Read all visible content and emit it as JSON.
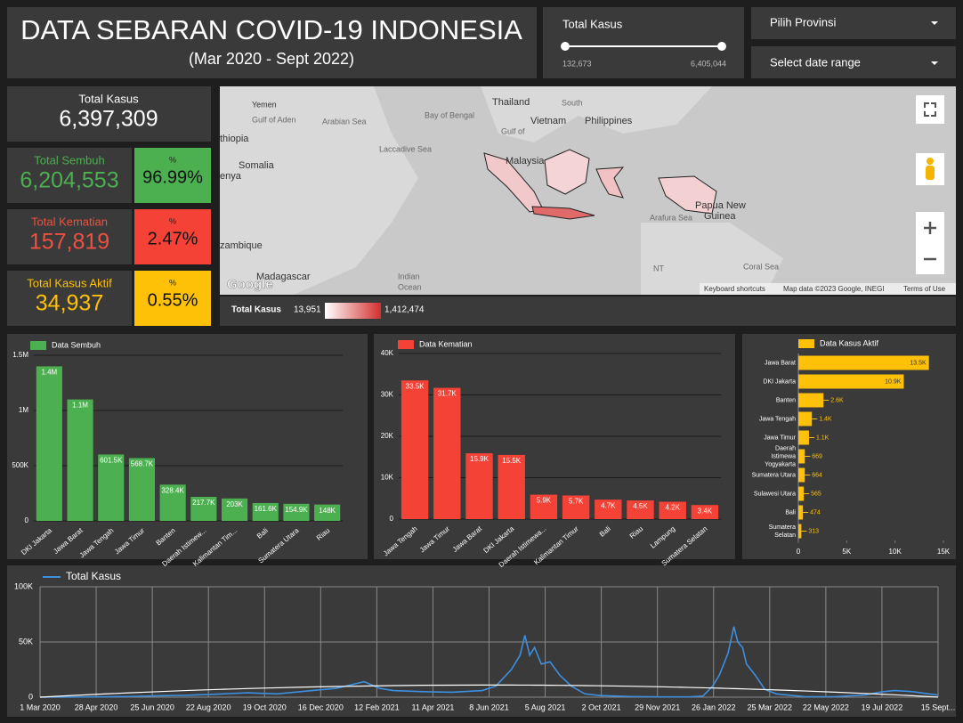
{
  "header": {
    "title": "DATA SEBARAN COVID-19 INDONESIA",
    "subtitle": "(Mar 2020 - Sept 2022)"
  },
  "slider": {
    "label": "Total Kasus",
    "min": "132,673",
    "max": "6,405,044"
  },
  "controls": [
    "Pilih Provinsi",
    "Select date range"
  ],
  "kpis": [
    {
      "label": "Total Kasus",
      "value": "6,397,309"
    },
    {
      "label": "Total Sembuh",
      "value": "6,204,553",
      "pct_label": "%",
      "pct": "96.99%"
    },
    {
      "label": "Total Kematian",
      "value": "157,819",
      "pct_label": "%",
      "pct": "2.47%"
    },
    {
      "label": "Total Kasus Aktif",
      "value": "34,937",
      "pct_label": "%",
      "pct": "0.55%"
    }
  ],
  "map": {
    "places": [
      "Yemen",
      "Gulf of Aden",
      "Arabian Sea",
      "thiopia",
      "Somalia",
      "enya",
      "zambique",
      "Madagascar",
      "Indian",
      "Ocean",
      "Thailand",
      "Vietnam",
      "Philippines",
      "Bay of Bengal",
      "Laccadive Sea",
      "Malaysia",
      "Papua New",
      "Guinea",
      "Coral Sea",
      "South",
      "Gulf of",
      "NT",
      "Arafura Sea",
      "Google"
    ],
    "attribution": [
      "Keyboard shortcuts",
      "Map data ©2023 Google, INEGI",
      "Terms of Use"
    ],
    "legend": {
      "label": "Total Kasus",
      "min": "13,951",
      "max": "1,412,474"
    }
  },
  "chart_data": [
    {
      "type": "bar",
      "categories": [
        "DKI Jakarta",
        "Jawa Barat",
        "Jawa Tengah",
        "Jawa Timur",
        "Banten",
        "Daerah Istimew...",
        "Kalimantan Tim...",
        "Bali",
        "Sumatera Utara",
        "Riau"
      ],
      "series": [
        {
          "name": "Data Sembuh",
          "color": "#4caf50",
          "values": [
            1400000,
            1100000,
            601500,
            568700,
            328400,
            217700,
            203000,
            161600,
            154900,
            148000
          ],
          "value_labels": [
            "1.4M",
            "1.1M",
            "601.5K",
            "568.7K",
            "328.4K",
            "217.7K",
            "203K",
            "161.6K",
            "154.9K",
            "148K"
          ]
        }
      ],
      "ylim": [
        0,
        1500000
      ],
      "yticks": [
        0,
        {
          "value": 500000,
          "label": "500K"
        },
        {
          "value": 1000000,
          "label": "1M"
        },
        {
          "value": 1500000,
          "label": "1.5M"
        }
      ],
      "grid": true
    },
    {
      "type": "bar",
      "categories": [
        "Jawa Tengah",
        "Jawa Timur",
        "Jawa Barat",
        "DKI Jakarta",
        "Daerah Istimewa...",
        "Kalimantan Timur",
        "Bali",
        "Riau",
        "Lampung",
        "Sumatera Selatan"
      ],
      "series": [
        {
          "name": "Data Kematian",
          "color": "#f44336",
          "values": [
            33500,
            31700,
            15900,
            15500,
            5900,
            5700,
            4700,
            4500,
            4200,
            3400
          ],
          "value_labels": [
            "33.5K",
            "31.7K",
            "15.9K",
            "15.5K",
            "5.9K",
            "5.7K",
            "4.7K",
            "4.5K",
            "4.2K",
            "3.4K"
          ]
        }
      ],
      "ylim": [
        0,
        40000
      ],
      "yticks": [
        0,
        {
          "value": 10000,
          "label": "10K"
        },
        {
          "value": 20000,
          "label": "20K"
        },
        {
          "value": 30000,
          "label": "30K"
        },
        {
          "value": 40000,
          "label": "40K"
        }
      ],
      "grid": true
    },
    {
      "type": "hbar",
      "categories": [
        "Jawa Barat",
        "DKI Jakarta",
        "Banten",
        "Jawa Tengah",
        "Jawa Timur",
        "Daerah Istimewa Yogyakarta",
        "Sumatera Utara",
        "Sulawesi Utara",
        "Bali",
        "Sumatera Selatan"
      ],
      "series": [
        {
          "name": "Data Kasus Aktif",
          "color": "#ffc107",
          "values": [
            13500,
            10900,
            2600,
            1400,
            1100,
            669,
            664,
            565,
            474,
            313
          ],
          "value_labels": [
            "13.5K",
            "10.9K",
            "2.6K",
            "1.4K",
            "1.1K",
            "669",
            "664",
            "565",
            "474",
            "313"
          ]
        }
      ],
      "xlim": [
        0,
        15000
      ],
      "xticks": [
        0,
        {
          "value": 5000,
          "label": "5K"
        },
        {
          "value": 10000,
          "label": "10K"
        },
        {
          "value": 15000,
          "label": "15K"
        }
      ]
    },
    {
      "type": "line",
      "x": [
        "1 Mar 2020",
        "1 Apr 2020",
        "1 May 2020",
        "1 Jun 2020",
        "1 Jul 2020",
        "1 Aug 2020",
        "1 Sep 2020",
        "1 Oct 2020",
        "1 Nov 2020",
        "1 Dec 2020",
        "1 Jan 2021",
        "30 Jan 2021",
        "15 Feb 2021",
        "1 Mar 2021",
        "1 Apr 2021",
        "1 May 2021",
        "1 Jun 2021",
        "15 Jun 2021",
        "1 Jul 2021",
        "10 Jul 2021",
        "15 Jul 2021",
        "20 Jul 2021",
        "25 Jul 2021",
        "1 Aug 2021",
        "10 Aug 2021",
        "20 Aug 2021",
        "1 Sep 2021",
        "15 Sep 2021",
        "1 Oct 2021",
        "1 Nov 2021",
        "1 Dec 2021",
        "1 Jan 2022",
        "15 Jan 2022",
        "25 Jan 2022",
        "1 Feb 2022",
        "10 Feb 2022",
        "16 Feb 2022",
        "20 Feb 2022",
        "25 Feb 2022",
        "1 Mar 2022",
        "10 Mar 2022",
        "20 Mar 2022",
        "1 Apr 2022",
        "1 May 2022",
        "1 Jun 2022",
        "1 Jul 2022",
        "20 Jul 2022",
        "1 Aug 2022",
        "20 Aug 2022",
        "1 Sep 2022",
        "15 Sep 2022"
      ],
      "series": [
        {
          "name": "Total Kasus",
          "color": "#3d8fe0",
          "values": [
            0,
            100,
            300,
            600,
            1300,
            1800,
            2800,
            4000,
            3000,
            5500,
            8000,
            14000,
            8000,
            6000,
            5000,
            4500,
            6000,
            10000,
            25000,
            38000,
            56000,
            38000,
            45000,
            30000,
            32000,
            20000,
            10000,
            3000,
            1500,
            600,
            300,
            300,
            1000,
            10000,
            20000,
            40000,
            64000,
            50000,
            45000,
            30000,
            20000,
            7000,
            3000,
            400,
            500,
            2000,
            5000,
            6000,
            5000,
            3500,
            2000
          ]
        },
        {
          "color": "#ffffff",
          "values": [
            0,
            1420,
            2700,
            3900,
            5000,
            6100,
            7000,
            7800,
            8500,
            9200,
            9700,
            10100,
            10300,
            10500,
            10800,
            10900,
            11000,
            11000,
            10980,
            10950,
            10930,
            10920,
            10900,
            10860,
            10800,
            10740,
            10640,
            10510,
            10330,
            9930,
            9440,
            8830,
            8530,
            8310,
            8140,
            7910,
            7770,
            7670,
            7530,
            7420,
            7170,
            6900,
            6550,
            5580,
            4510,
            3390,
            2640,
            2150,
            1280,
            730,
            90
          ]
        }
      ],
      "ylim": [
        0,
        100000
      ],
      "yticks": [
        0,
        {
          "value": 50000,
          "label": "50K"
        },
        {
          "value": 100000,
          "label": "100K"
        }
      ],
      "xlim": [
        "1 Mar 2020",
        "15 Sep 2022"
      ],
      "xticks": [
        "1 Mar 2020",
        "28 Apr 2020",
        "25 Jun 2020",
        "22 Aug 2020",
        "19 Oct 2020",
        "16 Dec 2020",
        "12 Feb 2021",
        "11 Apr 2021",
        "8 Jun 2021",
        "5 Aug 2021",
        "2 Oct 2021",
        "29 Nov 2021",
        "26 Jan 2022",
        "25 Mar 2022",
        "22 May 2022",
        "19 Jul 2022",
        {
          "value": "15 Sep 2022",
          "label": "15 Sept..."
        }
      ],
      "grid": true
    }
  ]
}
